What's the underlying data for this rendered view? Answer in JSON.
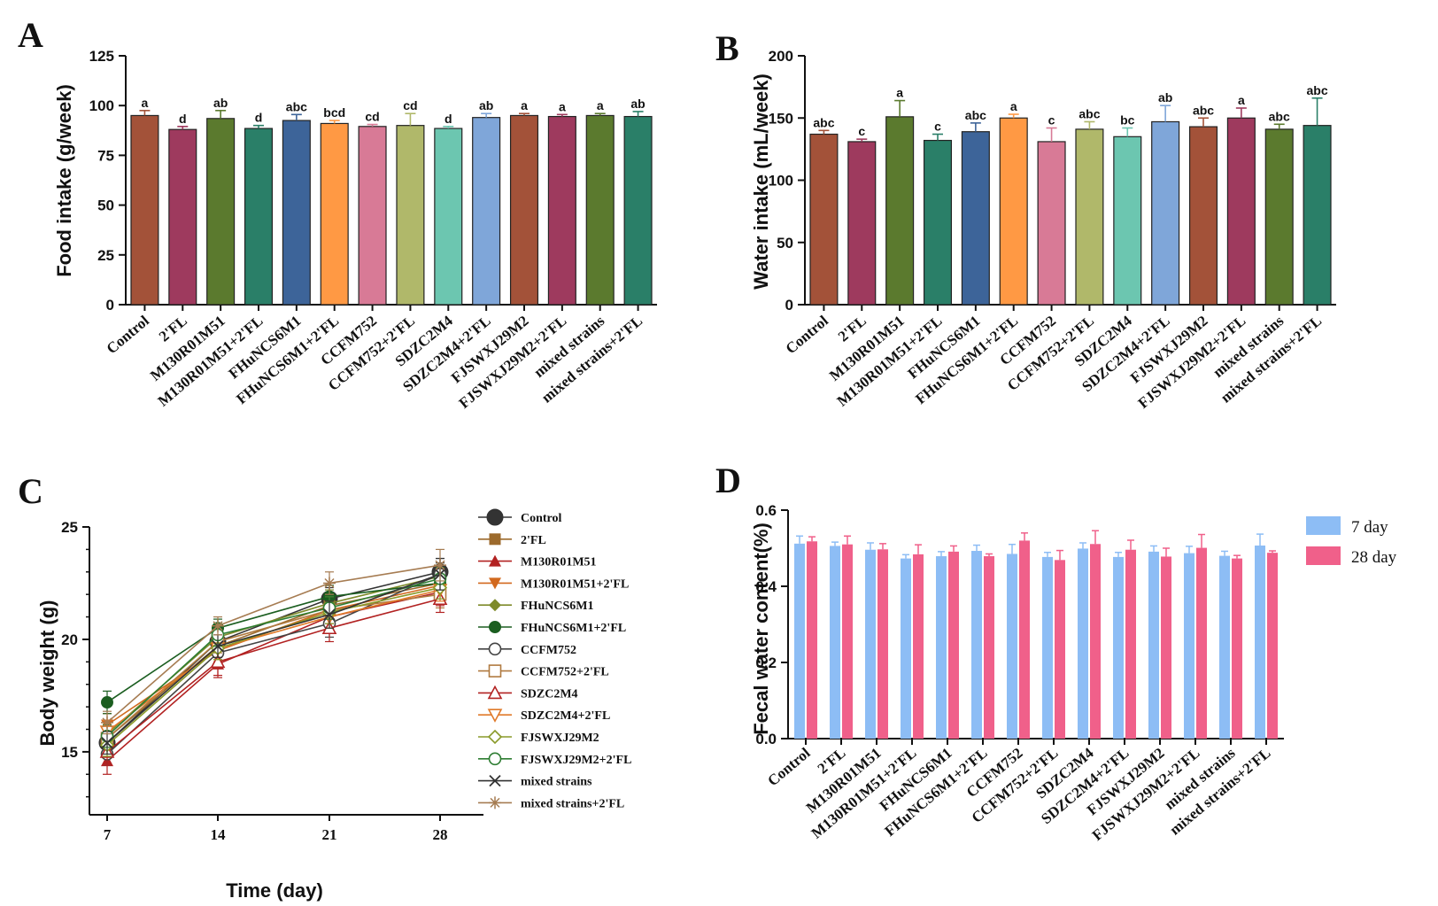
{
  "chart_data": [
    {
      "panel": "A",
      "type": "bar",
      "ylabel": "Food intake (g/week)",
      "ylim": [
        0,
        125
      ],
      "yticks": [
        0,
        25,
        50,
        75,
        100,
        125
      ],
      "categories": [
        "Control",
        "2'FL",
        "M130R01M51",
        "M130R01M51+2'FL",
        "FHuNCS6M1",
        "FHuNCS6M1+2'FL",
        "CCFM752",
        "CCFM752+2'FL",
        "SDZC2M4",
        "SDZC2M4+2'FL",
        "FJSWXJ29M2",
        "FJSWXJ29M2+2'FL",
        "mixed strains",
        "mixed strains+2'FL"
      ],
      "values": [
        95,
        88,
        93.5,
        88.5,
        92.5,
        91,
        89.5,
        90,
        88.5,
        94,
        95,
        94.5,
        95,
        94.5
      ],
      "errors": [
        2.5,
        1.5,
        4,
        1.5,
        3,
        1.5,
        1,
        6,
        1,
        2,
        1,
        1,
        1,
        2.5
      ],
      "letters": [
        "a",
        "d",
        "ab",
        "d",
        "abc",
        "bcd",
        "cd",
        "cd",
        "d",
        "ab",
        "a",
        "a",
        "a",
        "ab"
      ],
      "colors": [
        "#A35239",
        "#9E3A5E",
        "#5B7A2E",
        "#2A7F68",
        "#3D6499",
        "#FF9944",
        "#D87A96",
        "#B0B86A",
        "#6CC6B0",
        "#7FA6D9",
        "#A35239",
        "#9E3A5E",
        "#5B7A2E",
        "#2A7F68"
      ]
    },
    {
      "panel": "B",
      "type": "bar",
      "ylabel": "Water intake (mL/week)",
      "ylim": [
        0,
        200
      ],
      "yticks": [
        0,
        50,
        100,
        150,
        200
      ],
      "categories": [
        "Control",
        "2'FL",
        "M130R01M51",
        "M130R01M51+2'FL",
        "FHuNCS6M1",
        "FHuNCS6M1+2'FL",
        "CCFM752",
        "CCFM752+2'FL",
        "SDZC2M4",
        "SDZC2M4+2'FL",
        "FJSWXJ29M2",
        "FJSWXJ29M2+2'FL",
        "mixed strains",
        "mixed strains+2'FL"
      ],
      "values": [
        137,
        131,
        151,
        132,
        139,
        150,
        131,
        141,
        135,
        147,
        143,
        150,
        141,
        144
      ],
      "errors": [
        3,
        2,
        13,
        5,
        7,
        3,
        11,
        6,
        7,
        13,
        7,
        8,
        4,
        22
      ],
      "letters": [
        "abc",
        "c",
        "a",
        "c",
        "abc",
        "a",
        "c",
        "abc",
        "bc",
        "ab",
        "abc",
        "a",
        "abc",
        "abc"
      ],
      "colors": [
        "#A35239",
        "#9E3A5E",
        "#5B7A2E",
        "#2A7F68",
        "#3D6499",
        "#FF9944",
        "#D87A96",
        "#B0B86A",
        "#6CC6B0",
        "#7FA6D9",
        "#A35239",
        "#9E3A5E",
        "#5B7A2E",
        "#2A7F68"
      ]
    },
    {
      "panel": "C",
      "type": "line",
      "xlabel": "Time (day)",
      "ylabel": "Body weight (g)",
      "x": [
        7,
        14,
        21,
        28
      ],
      "xticks": [
        7,
        14,
        21,
        28
      ],
      "yticks": [
        15,
        20,
        25
      ],
      "ylim": [
        12.2,
        25
      ],
      "series": [
        {
          "name": "Control",
          "color": "#333333",
          "marker": "circle-filled-big",
          "values": [
            15.4,
            19.9,
            21.8,
            23.0
          ],
          "errors": [
            0.6,
            0.7,
            0.5,
            0.6
          ]
        },
        {
          "name": "2'FL",
          "color": "#9C6A2C",
          "marker": "square-filled",
          "values": [
            15.6,
            19.7,
            21.5,
            22.5
          ],
          "errors": [
            0.5,
            0.5,
            0.5,
            0.6
          ]
        },
        {
          "name": "M130R01M51",
          "color": "#B22222",
          "marker": "triangle-filled",
          "values": [
            14.6,
            18.9,
            21.0,
            22.1
          ],
          "errors": [
            0.6,
            0.6,
            0.6,
            0.6
          ]
        },
        {
          "name": "M130R01M51+2'FL",
          "color": "#D2691E",
          "marker": "triangle-down-filled",
          "values": [
            16.2,
            19.5,
            21.3,
            22.4
          ],
          "errors": [
            0.5,
            0.5,
            0.5,
            0.5
          ]
        },
        {
          "name": "FHuNCS6M1",
          "color": "#7E8A2A",
          "marker": "diamond-filled",
          "values": [
            15.8,
            20.1,
            21.6,
            22.8
          ],
          "errors": [
            0.4,
            0.4,
            0.6,
            0.6
          ]
        },
        {
          "name": "FHuNCS6M1+2'FL",
          "color": "#1B5E20",
          "marker": "circle-filled",
          "values": [
            17.2,
            20.5,
            21.9,
            22.5
          ],
          "errors": [
            0.5,
            0.4,
            0.5,
            0.5
          ]
        },
        {
          "name": "CCFM752",
          "color": "#444444",
          "marker": "circle-open",
          "values": [
            14.9,
            19.4,
            20.7,
            22.9
          ],
          "errors": [
            0.5,
            0.5,
            0.6,
            0.5
          ]
        },
        {
          "name": "CCFM752+2'FL",
          "color": "#B07A40",
          "marker": "square-open",
          "values": [
            15.6,
            19.9,
            21.3,
            22.0
          ],
          "errors": [
            0.4,
            0.5,
            0.6,
            0.6
          ]
        },
        {
          "name": "SDZC2M4",
          "color": "#B22222",
          "marker": "triangle-open",
          "values": [
            15.0,
            19.0,
            20.5,
            21.8
          ],
          "errors": [
            0.6,
            0.6,
            0.6,
            0.6
          ]
        },
        {
          "name": "SDZC2M4+2'FL",
          "color": "#E07A2A",
          "marker": "triangle-down-open",
          "values": [
            15.9,
            19.6,
            21.0,
            22.2
          ],
          "errors": [
            0.5,
            0.5,
            0.5,
            0.5
          ]
        },
        {
          "name": "FJSWXJ29M2",
          "color": "#8A9A2A",
          "marker": "diamond-open",
          "values": [
            15.3,
            19.6,
            21.2,
            22.3
          ],
          "errors": [
            0.5,
            0.5,
            0.5,
            0.5
          ]
        },
        {
          "name": "FJSWXJ29M2+2'FL",
          "color": "#2E7D32",
          "marker": "circle-open-green",
          "values": [
            15.7,
            20.2,
            21.4,
            22.7
          ],
          "errors": [
            0.5,
            0.5,
            0.5,
            0.5
          ]
        },
        {
          "name": "mixed strains",
          "color": "#333333",
          "marker": "cross",
          "values": [
            15.4,
            19.7,
            21.1,
            22.9
          ],
          "errors": [
            0.5,
            0.5,
            0.6,
            0.7
          ]
        },
        {
          "name": "mixed strains+2'FL",
          "color": "#A67C52",
          "marker": "star",
          "values": [
            16.3,
            20.6,
            22.5,
            23.3
          ],
          "errors": [
            0.5,
            0.4,
            0.5,
            0.7
          ]
        }
      ]
    },
    {
      "panel": "D",
      "type": "bar",
      "ylabel": "Fecal water content(%)",
      "ylim": [
        0,
        0.6
      ],
      "yticks": [
        0.0,
        0.2,
        0.4,
        0.6
      ],
      "categories": [
        "Control",
        "2'FL",
        "M130R01M51",
        "M130R01M51+2'FL",
        "FHuNCS6M1",
        "FHuNCS6M1+2'FL",
        "CCFM752",
        "CCFM752+2'FL",
        "SDZC2M4",
        "SDZC2M4+2'FL",
        "FJSWXJ29M2",
        "FJSWXJ29M2+2'FL",
        "mixed strains",
        "mixed strains+2'FL"
      ],
      "series": [
        {
          "name": "7 day",
          "color": "#8DBDF5",
          "values": [
            0.512,
            0.506,
            0.496,
            0.473,
            0.479,
            0.493,
            0.485,
            0.477,
            0.499,
            0.477,
            0.491,
            0.487,
            0.48,
            0.507
          ],
          "errors": [
            0.02,
            0.01,
            0.018,
            0.01,
            0.012,
            0.015,
            0.025,
            0.012,
            0.015,
            0.012,
            0.015,
            0.018,
            0.012,
            0.03
          ]
        },
        {
          "name": "28 day",
          "color": "#F0608A",
          "values": [
            0.518,
            0.51,
            0.497,
            0.484,
            0.491,
            0.479,
            0.52,
            0.469,
            0.511,
            0.496,
            0.478,
            0.501,
            0.473,
            0.488
          ],
          "errors": [
            0.012,
            0.022,
            0.015,
            0.025,
            0.015,
            0.006,
            0.02,
            0.025,
            0.035,
            0.025,
            0.022,
            0.035,
            0.008,
            0.005
          ]
        }
      ]
    }
  ]
}
